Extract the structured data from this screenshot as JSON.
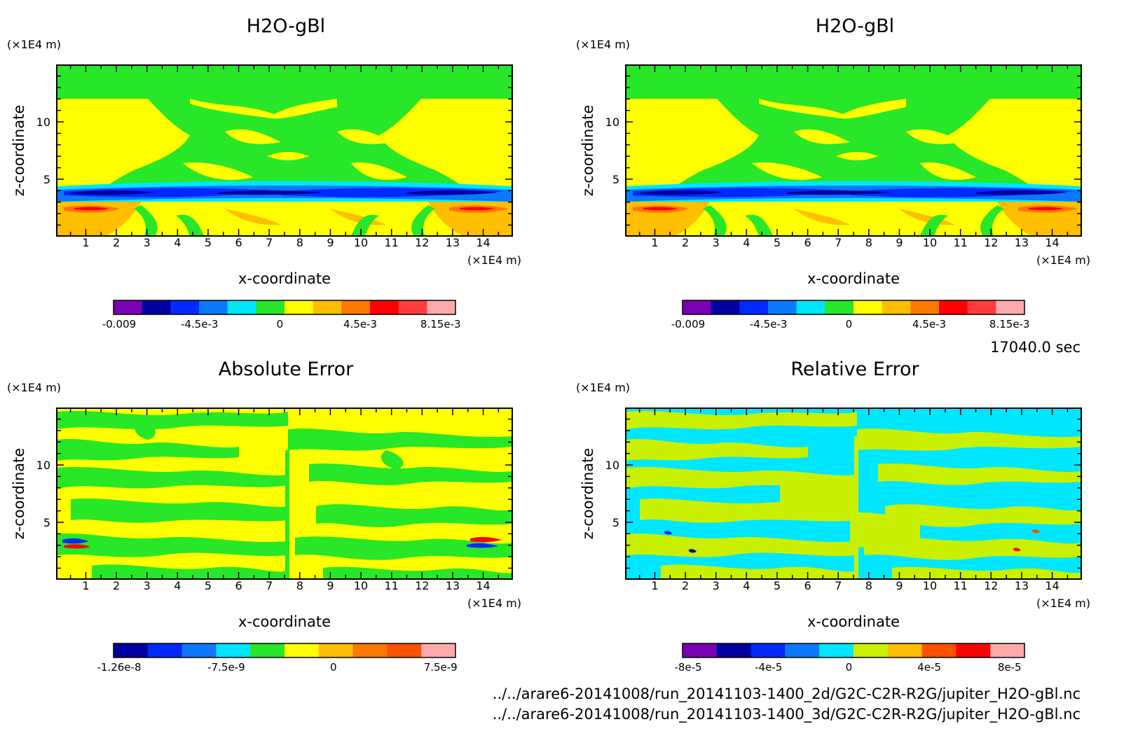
{
  "timestamp": "17040.0 sec",
  "files": [
    "../../arare6-20141008/run_20141103-1400_2d/G2C-C2R-R2G/jupiter_H2O-gBl.nc",
    "../../arare6-20141008/run_20141103-1400_3d/G2C-C2R-R2G/jupiter_H2O-gBl.nc"
  ],
  "colors": {
    "purple": "#7a00b4",
    "navy": "#0000a0",
    "blue": "#0028ff",
    "mid_blue": "#0a78ff",
    "cyan": "#00e6ff",
    "green": "#28e628",
    "lime": "#c8f000",
    "yellow": "#ffff00",
    "light_orange": "#ffbe00",
    "orange": "#ff7800",
    "dark_orange": "#ff5000",
    "red": "#ff0000",
    "rose": "#ff3c3c",
    "pink": "#ffaaaa"
  },
  "chart_data": [
    {
      "type": "heatmap",
      "title": "H2O-gBl",
      "xlabel": "x-coordinate",
      "ylabel": "z-coordinate",
      "xunit": "(×1E4 m)",
      "yunit": "(×1E4 m)",
      "xlim": [
        0.05,
        14.95
      ],
      "ylim": [
        0.05,
        14.95
      ],
      "xticks": [
        "1",
        "2",
        "3",
        "4",
        "5",
        "6",
        "7",
        "8",
        "9",
        "10",
        "11",
        "12",
        "13",
        "14"
      ],
      "yticks": [
        "5",
        "10"
      ],
      "colorbar": {
        "colors": [
          "#7a00b4",
          "#0000a0",
          "#0028ff",
          "#0a78ff",
          "#00e6ff",
          "#28e628",
          "#ffff00",
          "#ffbe00",
          "#ff7800",
          "#ff0000",
          "#ff3c3c",
          "#ffaaaa"
        ],
        "labels": [
          "-0.009",
          "-4.5e-3",
          "0",
          "4.5e-3",
          "8.15e-3"
        ]
      }
    },
    {
      "type": "heatmap",
      "title": "H2O-gBl",
      "xlabel": "x-coordinate",
      "ylabel": "z-coordinate",
      "xunit": "(×1E4 m)",
      "yunit": "(×1E4 m)",
      "xlim": [
        0.05,
        14.95
      ],
      "ylim": [
        0.05,
        14.95
      ],
      "xticks": [
        "1",
        "2",
        "3",
        "4",
        "5",
        "6",
        "7",
        "8",
        "9",
        "10",
        "11",
        "12",
        "13",
        "14"
      ],
      "yticks": [
        "5",
        "10"
      ],
      "colorbar": {
        "colors": [
          "#7a00b4",
          "#0000a0",
          "#0028ff",
          "#0a78ff",
          "#00e6ff",
          "#28e628",
          "#ffff00",
          "#ffbe00",
          "#ff7800",
          "#ff0000",
          "#ff3c3c",
          "#ffaaaa"
        ],
        "labels": [
          "-0.009",
          "-4.5e-3",
          "0",
          "4.5e-3",
          "8.15e-3"
        ]
      }
    },
    {
      "type": "heatmap",
      "title": "Absolute Error",
      "xlabel": "x-coordinate",
      "ylabel": "z-coordinate",
      "xunit": "(×1E4 m)",
      "yunit": "(×1E4 m)",
      "xlim": [
        0.05,
        14.95
      ],
      "ylim": [
        0.05,
        14.95
      ],
      "xticks": [
        "1",
        "2",
        "3",
        "4",
        "5",
        "6",
        "7",
        "8",
        "9",
        "10",
        "11",
        "12",
        "13",
        "14"
      ],
      "yticks": [
        "5",
        "10"
      ],
      "colorbar": {
        "colors": [
          "#0000a0",
          "#0028ff",
          "#0a78ff",
          "#00e6ff",
          "#28e628",
          "#ffff00",
          "#ffbe00",
          "#ff7800",
          "#ff5000",
          "#ffaaaa"
        ],
        "labels": [
          "-1.26e-8",
          "-7.5e-9",
          "0",
          "7.5e-9"
        ]
      }
    },
    {
      "type": "heatmap",
      "title": "Relative Error",
      "xlabel": "x-coordinate",
      "ylabel": "z-coordinate",
      "xunit": "(×1E4 m)",
      "yunit": "(×1E4 m)",
      "xlim": [
        0.05,
        14.95
      ],
      "ylim": [
        0.05,
        14.95
      ],
      "xticks": [
        "1",
        "2",
        "3",
        "4",
        "5",
        "6",
        "7",
        "8",
        "9",
        "10",
        "11",
        "12",
        "13",
        "14"
      ],
      "yticks": [
        "5",
        "10"
      ],
      "colorbar": {
        "colors": [
          "#7a00b4",
          "#0000a0",
          "#0028ff",
          "#0a78ff",
          "#00e6ff",
          "#c8f000",
          "#ffbe00",
          "#ff5000",
          "#ff0000",
          "#ffaaaa"
        ],
        "labels": [
          "-8e-5",
          "-4e-5",
          "0",
          "4e-5",
          "8e-5"
        ]
      }
    }
  ]
}
